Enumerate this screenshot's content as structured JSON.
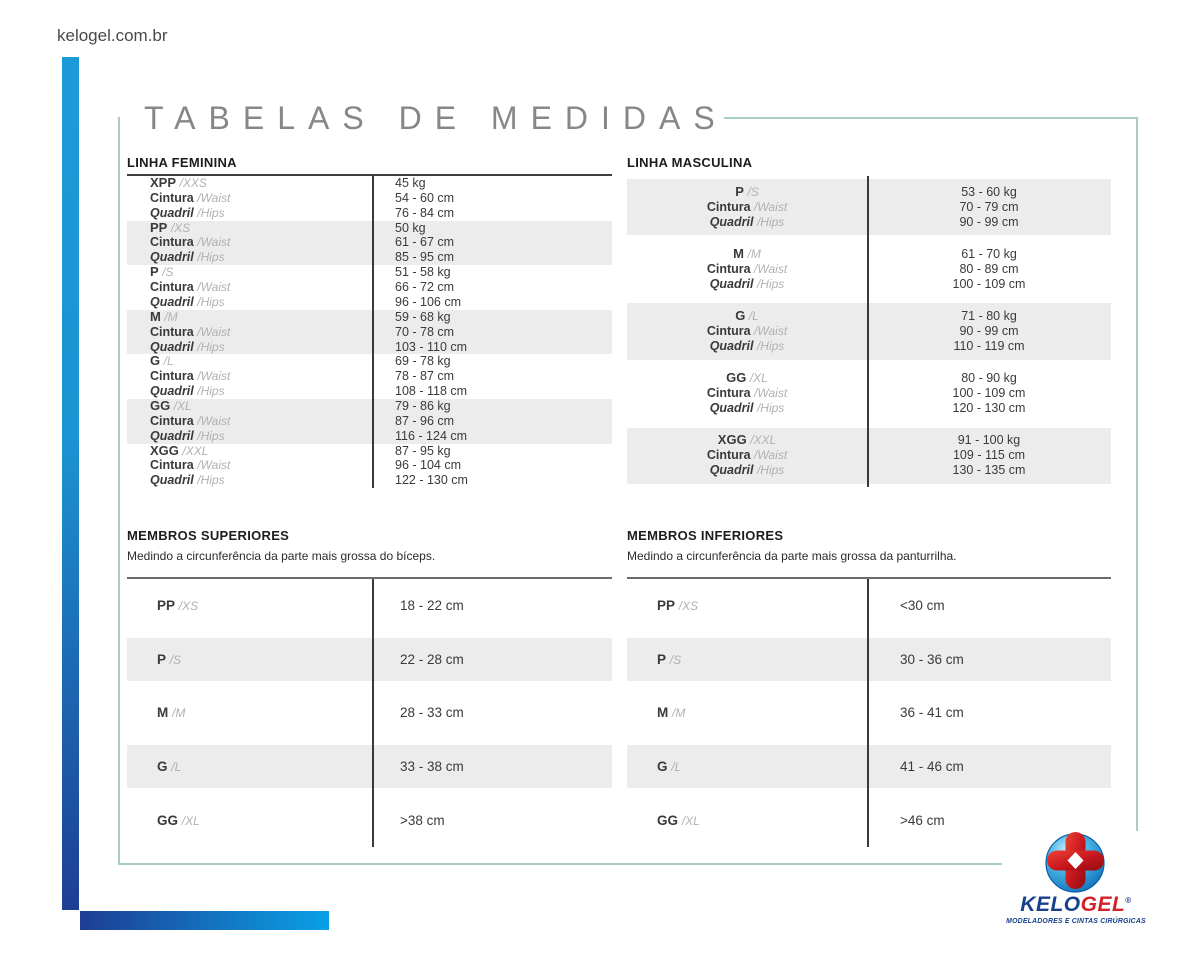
{
  "page": {
    "site_url": "kelogel.com.br",
    "title": "TABELAS DE MEDIDAS"
  },
  "colors": {
    "bar_blue_light": "#1C9AD7",
    "bar_blue_dark": "#1D3E93",
    "row_stripe": "#ECECEC",
    "box_border": "#ABCDC8",
    "title_gray": "#85888A",
    "logo_navy": "#16418C",
    "logo_red": "#D2232A"
  },
  "labels": {
    "cintura": "Cintura",
    "waist": "/Waist",
    "quadril": "Quadril",
    "hips": "/Hips"
  },
  "linha_feminina": {
    "title": "LINHA FEMININA",
    "rows": [
      {
        "size": "XPP",
        "size_en": "/XXS",
        "weight": "45 kg",
        "waist": "54 - 60 cm",
        "hips": "76 - 84 cm"
      },
      {
        "size": "PP",
        "size_en": "/XS",
        "weight": "50 kg",
        "waist": "61 - 67 cm",
        "hips": "85 - 95 cm"
      },
      {
        "size": "P",
        "size_en": "/S",
        "weight": "51 - 58 kg",
        "waist": "66 - 72 cm",
        "hips": "96 - 106 cm"
      },
      {
        "size": "M",
        "size_en": "/M",
        "weight": "59 - 68 kg",
        "waist": "70 - 78 cm",
        "hips": "103 - 110 cm"
      },
      {
        "size": "G",
        "size_en": "/L",
        "weight": "69 - 78 kg",
        "waist": "78 - 87 cm",
        "hips": "108 - 118 cm"
      },
      {
        "size": "GG",
        "size_en": "/XL",
        "weight": "79 - 86 kg",
        "waist": "87 - 96 cm",
        "hips": "116 - 124 cm"
      },
      {
        "size": "XGG",
        "size_en": "/XXL",
        "weight": "87 - 95 kg",
        "waist": "96 - 104 cm",
        "hips": "122 - 130 cm"
      }
    ]
  },
  "linha_masculina": {
    "title": "LINHA MASCULINA",
    "rows": [
      {
        "size": "P",
        "size_en": "/S",
        "weight": "53 - 60 kg",
        "waist": "70 - 79 cm",
        "hips": "90 - 99 cm"
      },
      {
        "size": "M",
        "size_en": "/M",
        "weight": "61 - 70 kg",
        "waist": "80 - 89 cm",
        "hips": "100 - 109 cm"
      },
      {
        "size": "G",
        "size_en": "/L",
        "weight": "71 - 80 kg",
        "waist": "90 - 99 cm",
        "hips": "110 - 119 cm"
      },
      {
        "size": "GG",
        "size_en": "/XL",
        "weight": "80 - 90 kg",
        "waist": "100 - 109 cm",
        "hips": "120 - 130 cm"
      },
      {
        "size": "XGG",
        "size_en": "/XXL",
        "weight": "91 - 100 kg",
        "waist": "109 - 115 cm",
        "hips": "130 - 135 cm"
      }
    ]
  },
  "membros_superiores": {
    "title": "MEMBROS SUPERIORES",
    "subtitle": "Medindo a circunferência da parte mais grossa do bíceps.",
    "rows": [
      {
        "size": "PP",
        "size_en": "/XS",
        "value": "18 - 22 cm"
      },
      {
        "size": "P",
        "size_en": "/S",
        "value": "22 - 28 cm"
      },
      {
        "size": "M",
        "size_en": "/M",
        "value": "28 - 33 cm"
      },
      {
        "size": "G",
        "size_en": "/L",
        "value": "33 - 38 cm"
      },
      {
        "size": "GG",
        "size_en": "/XL",
        "value": ">38 cm"
      }
    ]
  },
  "membros_inferiores": {
    "title": "MEMBROS INFERIORES",
    "subtitle": "Medindo a circunferência da parte mais grossa da panturrilha.",
    "rows": [
      {
        "size": "PP",
        "size_en": "/XS",
        "value": "<30 cm"
      },
      {
        "size": "P",
        "size_en": "/S",
        "value": "30 - 36 cm"
      },
      {
        "size": "M",
        "size_en": "/M",
        "value": "36 - 41 cm"
      },
      {
        "size": "G",
        "size_en": "/L",
        "value": "41 - 46 cm"
      },
      {
        "size": "GG",
        "size_en": "/XL",
        "value": ">46 cm"
      }
    ]
  },
  "logo": {
    "brand_part1": "KELO",
    "brand_part2": "GEL",
    "registered": "®",
    "tagline": "MODELADORES E CINTAS CIRÚRGICAS"
  }
}
